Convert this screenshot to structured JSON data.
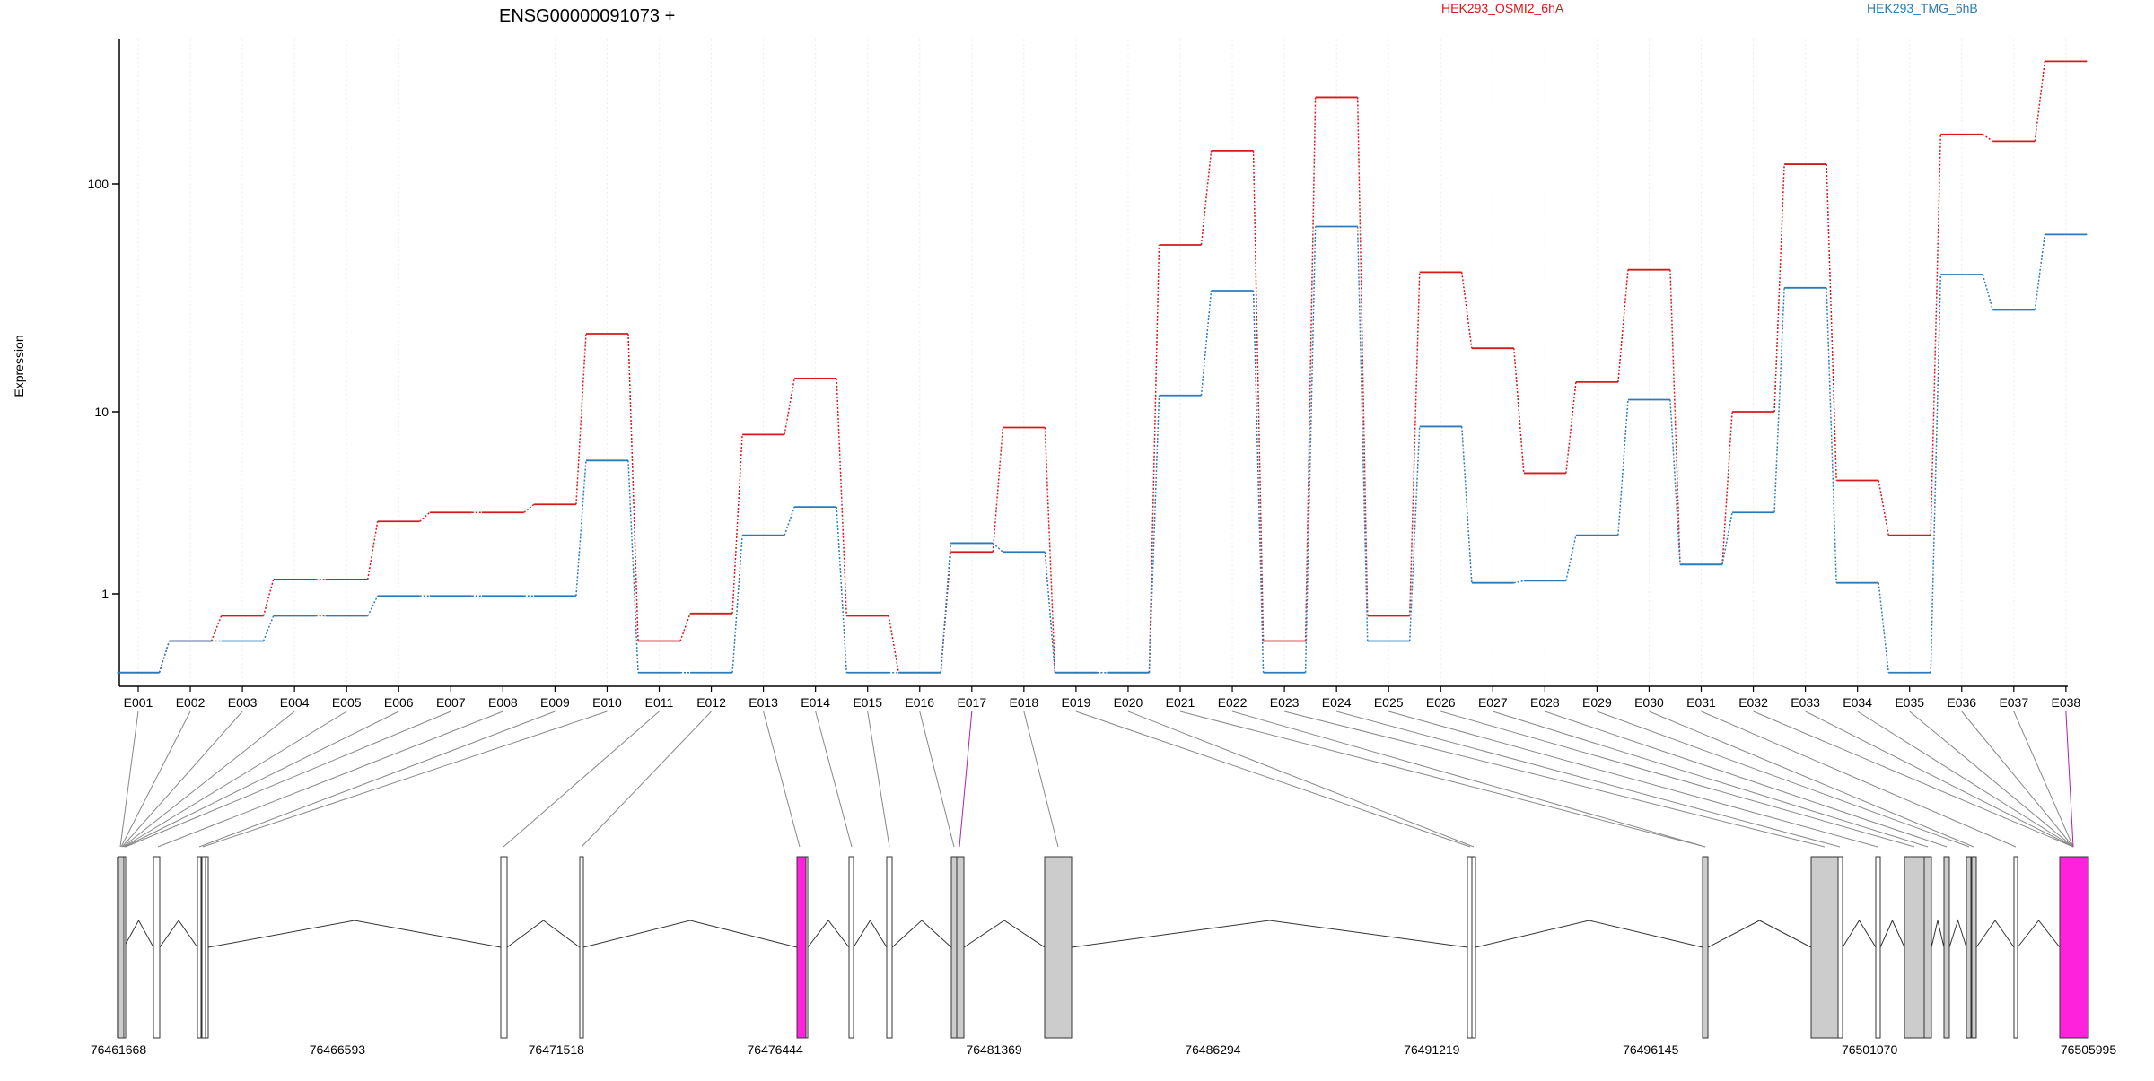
{
  "chart_data": {
    "type": "line",
    "title": "ENSG00000091073 +",
    "ylabel": "Expression",
    "yscale": "log",
    "ylim": [
      0.45,
      420
    ],
    "yticks": [
      "1",
      "10",
      "100"
    ],
    "categories": [
      "E001",
      "E002",
      "E003",
      "E004",
      "E005",
      "E006",
      "E007",
      "E008",
      "E009",
      "E010",
      "E011",
      "E012",
      "E013",
      "E014",
      "E015",
      "E016",
      "E017",
      "E018",
      "E019",
      "E020",
      "E021",
      "E022",
      "E023",
      "E024",
      "E025",
      "E026",
      "E027",
      "E028",
      "E029",
      "E030",
      "E031",
      "E032",
      "E033",
      "E034",
      "E035",
      "E036",
      "E037",
      "E038"
    ],
    "series": [
      {
        "name": "HEK293_OSMI2_6hA",
        "color": "#d7191c",
        "values": [
          0.45,
          0.62,
          0.8,
          1.2,
          1.2,
          2.5,
          2.8,
          2.8,
          3.1,
          22,
          0.62,
          0.82,
          7.5,
          14,
          0.8,
          0.45,
          1.7,
          8.2,
          0.45,
          0.45,
          54,
          140,
          0.62,
          240,
          0.8,
          41,
          19,
          4.6,
          13.5,
          42,
          1.45,
          10,
          122,
          4.2,
          2.1,
          165,
          154,
          345
        ]
      },
      {
        "name": "HEK293_TMG_6hB",
        "color": "#2b7bba",
        "values": [
          0.45,
          0.62,
          0.62,
          0.8,
          0.8,
          0.98,
          0.98,
          0.98,
          0.98,
          5.4,
          0.45,
          0.45,
          2.1,
          3.0,
          0.45,
          0.45,
          1.9,
          1.7,
          0.45,
          0.45,
          11.8,
          34,
          0.45,
          65,
          0.62,
          8.3,
          1.15,
          1.18,
          2.1,
          11.3,
          1.45,
          2.8,
          35,
          1.15,
          0.45,
          40,
          28,
          60
        ]
      }
    ],
    "genomic_ticks": [
      "76461668",
      "76466593",
      "76471518",
      "76476444",
      "76481369",
      "76486294",
      "76491219",
      "76496145",
      "76501070",
      "76505995"
    ],
    "exon_highlight": [
      "E017",
      "E038"
    ],
    "grid": true,
    "legend": "top"
  }
}
